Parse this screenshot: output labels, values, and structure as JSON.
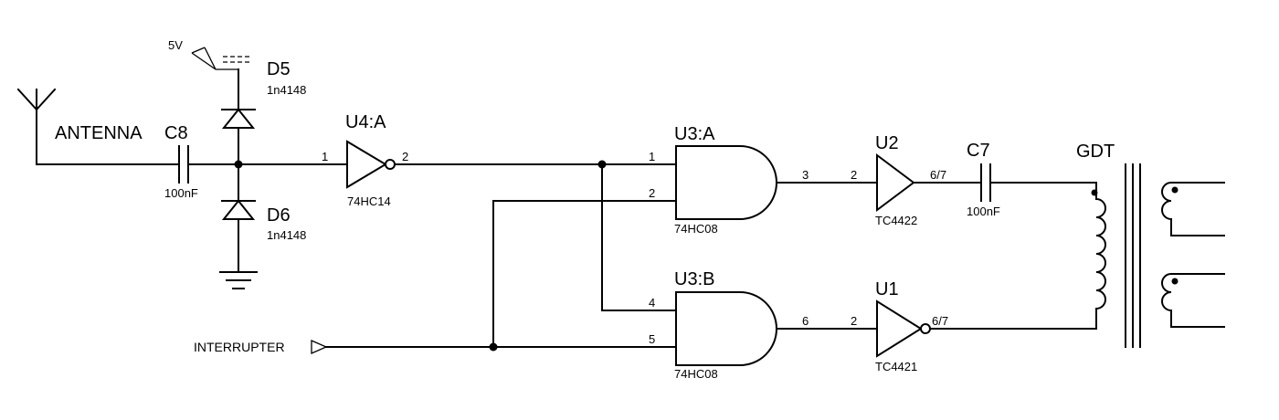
{
  "colors": {
    "wire": "#000000",
    "background": "#ffffff"
  },
  "antenna": {
    "label": "ANTENNA",
    "icon": "antenna-icon"
  },
  "supply": {
    "label": "5V",
    "icon": "power-rail-icon"
  },
  "ground": {
    "icon": "ground-icon"
  },
  "capacitors": {
    "c8": {
      "ref": "C8",
      "value": "100nF"
    },
    "c7": {
      "ref": "C7",
      "value": "100nF"
    }
  },
  "diodes": {
    "d5": {
      "ref": "D5",
      "value": "1n4148"
    },
    "d6": {
      "ref": "D6",
      "value": "1n4148"
    }
  },
  "inverter_u4a": {
    "ref": "U4:A",
    "part": "74HC14",
    "pin_in": "1",
    "pin_out": "2"
  },
  "gate_u3a": {
    "ref": "U3:A",
    "part": "74HC08",
    "pin_in1": "1",
    "pin_in2": "2",
    "pin_out": "3"
  },
  "gate_u3b": {
    "ref": "U3:B",
    "part": "74HC08",
    "pin_in1": "4",
    "pin_in2": "5",
    "pin_out": "6"
  },
  "driver_u2": {
    "ref": "U2",
    "part": "TC4422",
    "pin_in": "2",
    "pin_out": "6/7"
  },
  "driver_u1": {
    "ref": "U1",
    "part": "TC4421",
    "pin_in": "2",
    "pin_out": "6/7"
  },
  "transformer": {
    "ref": "GDT"
  },
  "interrupter": {
    "label": "INTERRUPTER"
  }
}
